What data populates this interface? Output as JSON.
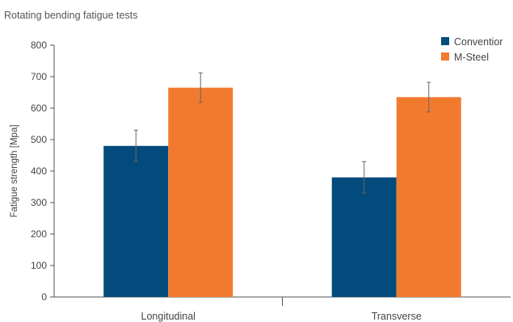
{
  "chart_data": {
    "type": "bar",
    "title": "Rotating bending fatigue tests",
    "ylabel": "Fatigue strength [Mpa]",
    "xlabel": "",
    "ylim": [
      0,
      800
    ],
    "yticks": [
      0,
      100,
      200,
      300,
      400,
      500,
      600,
      700,
      800
    ],
    "categories": [
      "Longitudinal",
      "Transverse"
    ],
    "series": [
      {
        "name": "Conventior",
        "color": "#034b7c",
        "values": [
          480,
          380
        ],
        "error": [
          50,
          50
        ]
      },
      {
        "name": "M-Steel",
        "color": "#f27a2f",
        "values": [
          665,
          635
        ],
        "error": [
          47,
          47
        ]
      }
    ],
    "legend": "top-right",
    "grid": false
  }
}
